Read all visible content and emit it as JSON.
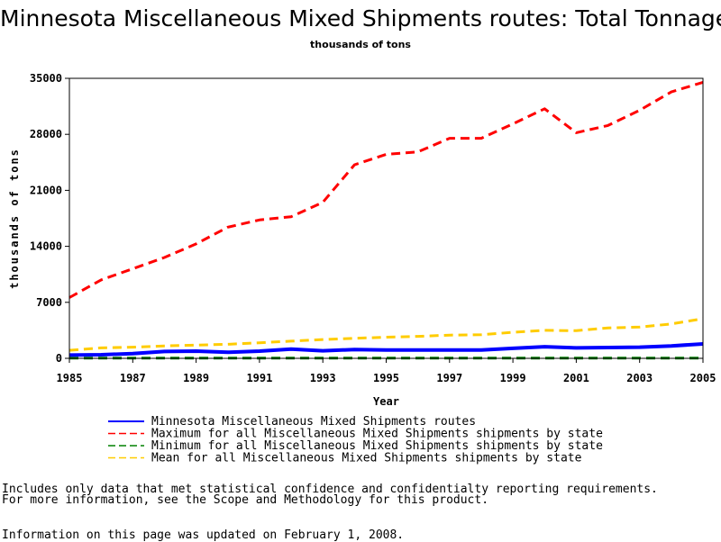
{
  "chart_data": {
    "type": "line",
    "title": "Minnesota Miscellaneous Mixed Shipments routes: Total Tonnage",
    "subtitle": "thousands of tons",
    "xlabel": "Year",
    "ylabel": "thousands of tons",
    "xlim": [
      1985,
      2005
    ],
    "ylim": [
      0,
      35000
    ],
    "x_ticks": [
      "1985",
      "1987",
      "1989",
      "1991",
      "1993",
      "1995",
      "1997",
      "1999",
      "2001",
      "2003",
      "2005"
    ],
    "y_ticks": [
      "0",
      "7000",
      "14000",
      "21000",
      "28000",
      "35000"
    ],
    "x": [
      1985,
      1986,
      1987,
      1988,
      1989,
      1990,
      1991,
      1992,
      1993,
      1994,
      1995,
      1996,
      1997,
      1998,
      1999,
      2000,
      2001,
      2002,
      2003,
      2004,
      2005
    ],
    "series": [
      {
        "name": "Minnesota Miscellaneous Mixed Shipments routes",
        "color": "#0000ff",
        "dash": "solid",
        "values": [
          400,
          450,
          600,
          850,
          900,
          750,
          900,
          1150,
          950,
          1100,
          1050,
          1050,
          1050,
          1050,
          1250,
          1450,
          1300,
          1350,
          1400,
          1550,
          1800
        ]
      },
      {
        "name": "Maximum for all Miscellaneous Mixed Shipments shipments by state",
        "color": "#ff0000",
        "dash": "dashed",
        "values": [
          7600,
          9800,
          11200,
          12600,
          14300,
          16400,
          17300,
          17700,
          19500,
          24200,
          25500,
          25800,
          27500,
          27500,
          29300,
          31200,
          28200,
          29100,
          31000,
          33300,
          34500
        ]
      },
      {
        "name": "Minimum for all Miscellaneous Mixed Shipments shipments by state",
        "color": "#008000",
        "dash": "dashed",
        "values": [
          20,
          20,
          20,
          20,
          30,
          20,
          20,
          20,
          20,
          20,
          20,
          20,
          20,
          20,
          20,
          20,
          20,
          20,
          20,
          20,
          20
        ]
      },
      {
        "name": "Mean for all Miscellaneous Mixed Shipments shipments by state",
        "color": "#ffcc00",
        "dash": "dashed",
        "values": [
          1000,
          1300,
          1400,
          1550,
          1650,
          1750,
          1950,
          2150,
          2350,
          2500,
          2650,
          2750,
          2900,
          2950,
          3250,
          3500,
          3450,
          3800,
          3900,
          4300,
          4950
        ]
      }
    ],
    "legend_placement": "bottom",
    "grid": false
  },
  "notes": {
    "line1": "Includes only data that met statistical confidence and confidentialty reporting requirements.",
    "line2": "For more information, see the Scope and Methodology for this product.",
    "line3": "Information on this page was updated on February 1, 2008."
  }
}
